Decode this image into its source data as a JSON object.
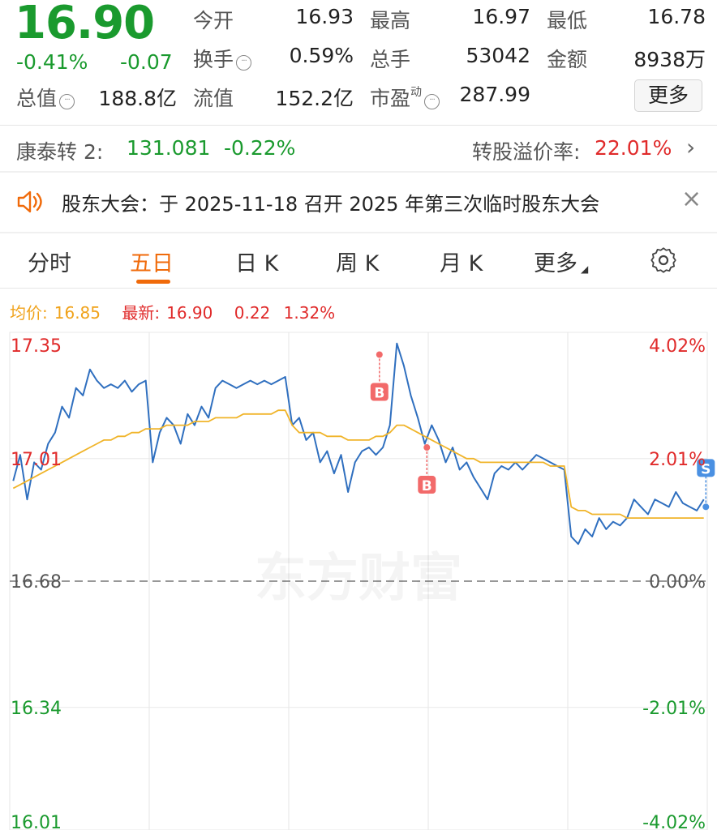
{
  "quote": {
    "price": "16.90",
    "change_pct": "-0.41%",
    "change_amt": "-0.07",
    "open_label": "今开",
    "open_value": "16.93",
    "high_label": "最高",
    "high_value": "16.97",
    "low_label": "最低",
    "low_value": "16.78",
    "turnover_label": "换手",
    "turnover_value": "0.59%",
    "volume_label": "总手",
    "volume_value": "53042",
    "amount_label": "金额",
    "amount_value": "8938万",
    "mktcap_label": "总值",
    "mktcap_value": "188.8亿",
    "float_label": "流值",
    "float_value": "152.2亿",
    "pe_label": "市盈",
    "pe_sup": "动",
    "pe_value": "287.99",
    "more_label": "更多"
  },
  "bond": {
    "name": "康泰转 2:",
    "price": "131.081",
    "change": "-0.22%",
    "premium_label": "转股溢价率:",
    "premium_value": "22.01%"
  },
  "notice": {
    "text": "股东大会：于 2025-11-18 召开 2025 年第三次临时股东大会"
  },
  "tabs": [
    {
      "label": "分时"
    },
    {
      "label": "五日"
    },
    {
      "label": "日 K"
    },
    {
      "label": "周 K"
    },
    {
      "label": "月 K"
    },
    {
      "label": "更多"
    }
  ],
  "legend": {
    "avg_label": "均价:",
    "avg_value": "16.85",
    "latest_label": "最新:",
    "latest_value": "16.90",
    "latest_change": "0.22",
    "latest_pct": "1.32%"
  },
  "colors": {
    "up": "#e02a2a",
    "down": "#1a9a2e",
    "price_line": "#2f6fbf",
    "avg_line": "#f0b429",
    "accent": "#f06a0a"
  },
  "chart_data": {
    "type": "line",
    "y_axis_left": [
      "17.35",
      "17.01",
      "16.68",
      "16.34",
      "16.01"
    ],
    "y_axis_right": [
      "4.02%",
      "2.01%",
      "0.00%",
      "-2.01%",
      "-4.02%"
    ],
    "ylim": [
      16.01,
      17.35
    ],
    "baseline": 16.68,
    "days": 5,
    "watermark": "东方财富",
    "markers": [
      {
        "label": "B",
        "day": 3,
        "price": 17.29
      },
      {
        "label": "B",
        "day": 3,
        "price": 17.04
      },
      {
        "label": "S",
        "day": 5,
        "price": 16.88
      }
    ],
    "series": [
      {
        "values": [
          16.95,
          17.02,
          16.9,
          17.0,
          16.98,
          17.05,
          17.08,
          17.15,
          17.12,
          17.2,
          17.18,
          17.25,
          17.22,
          17.2,
          17.21,
          17.2,
          17.22,
          17.19,
          17.21,
          17.22,
          17.0,
          17.08,
          17.12,
          17.1,
          17.05,
          17.13,
          17.1,
          17.15,
          17.12,
          17.2,
          17.22,
          17.21,
          17.2,
          17.21,
          17.22,
          17.21,
          17.22,
          17.21,
          17.22,
          17.23,
          17.1,
          17.12,
          17.06,
          17.08,
          17.0,
          17.03,
          16.97,
          17.02,
          16.92,
          17.0,
          17.03,
          17.04,
          17.02,
          17.04,
          17.1,
          17.32,
          17.26,
          17.18,
          17.12,
          17.05,
          17.1,
          17.06,
          17.0,
          17.04,
          16.98,
          17.0,
          16.96,
          16.93,
          16.9,
          16.97,
          16.99,
          16.98,
          17.0,
          16.98,
          17.0,
          17.02,
          17.01,
          17.0,
          16.99,
          16.98,
          16.8,
          16.78,
          16.82,
          16.8,
          16.85,
          16.82,
          16.84,
          16.83,
          16.85,
          16.9,
          16.88,
          16.86,
          16.9,
          16.89,
          16.88,
          16.92,
          16.89,
          16.88,
          16.87,
          16.9
        ]
      },
      {
        "values": [
          16.93,
          16.94,
          16.95,
          16.96,
          16.97,
          16.98,
          16.99,
          17.0,
          17.01,
          17.02,
          17.03,
          17.04,
          17.05,
          17.06,
          17.06,
          17.07,
          17.07,
          17.08,
          17.08,
          17.09,
          17.09,
          17.09,
          17.1,
          17.1,
          17.1,
          17.1,
          17.11,
          17.11,
          17.11,
          17.12,
          17.12,
          17.12,
          17.12,
          17.13,
          17.13,
          17.13,
          17.13,
          17.13,
          17.14,
          17.14,
          17.1,
          17.08,
          17.08,
          17.08,
          17.08,
          17.07,
          17.07,
          17.07,
          17.06,
          17.06,
          17.06,
          17.06,
          17.07,
          17.07,
          17.08,
          17.1,
          17.1,
          17.09,
          17.08,
          17.07,
          17.06,
          17.05,
          17.04,
          17.03,
          17.02,
          17.01,
          17.01,
          17.0,
          17.0,
          17.0,
          17.0,
          17.0,
          17.0,
          17.0,
          17.0,
          17.0,
          17.0,
          16.99,
          16.99,
          16.99,
          16.88,
          16.87,
          16.87,
          16.86,
          16.86,
          16.86,
          16.86,
          16.86,
          16.85,
          16.85,
          16.85,
          16.85,
          16.85,
          16.85,
          16.85,
          16.85,
          16.85,
          16.85,
          16.85,
          16.85
        ]
      }
    ]
  }
}
